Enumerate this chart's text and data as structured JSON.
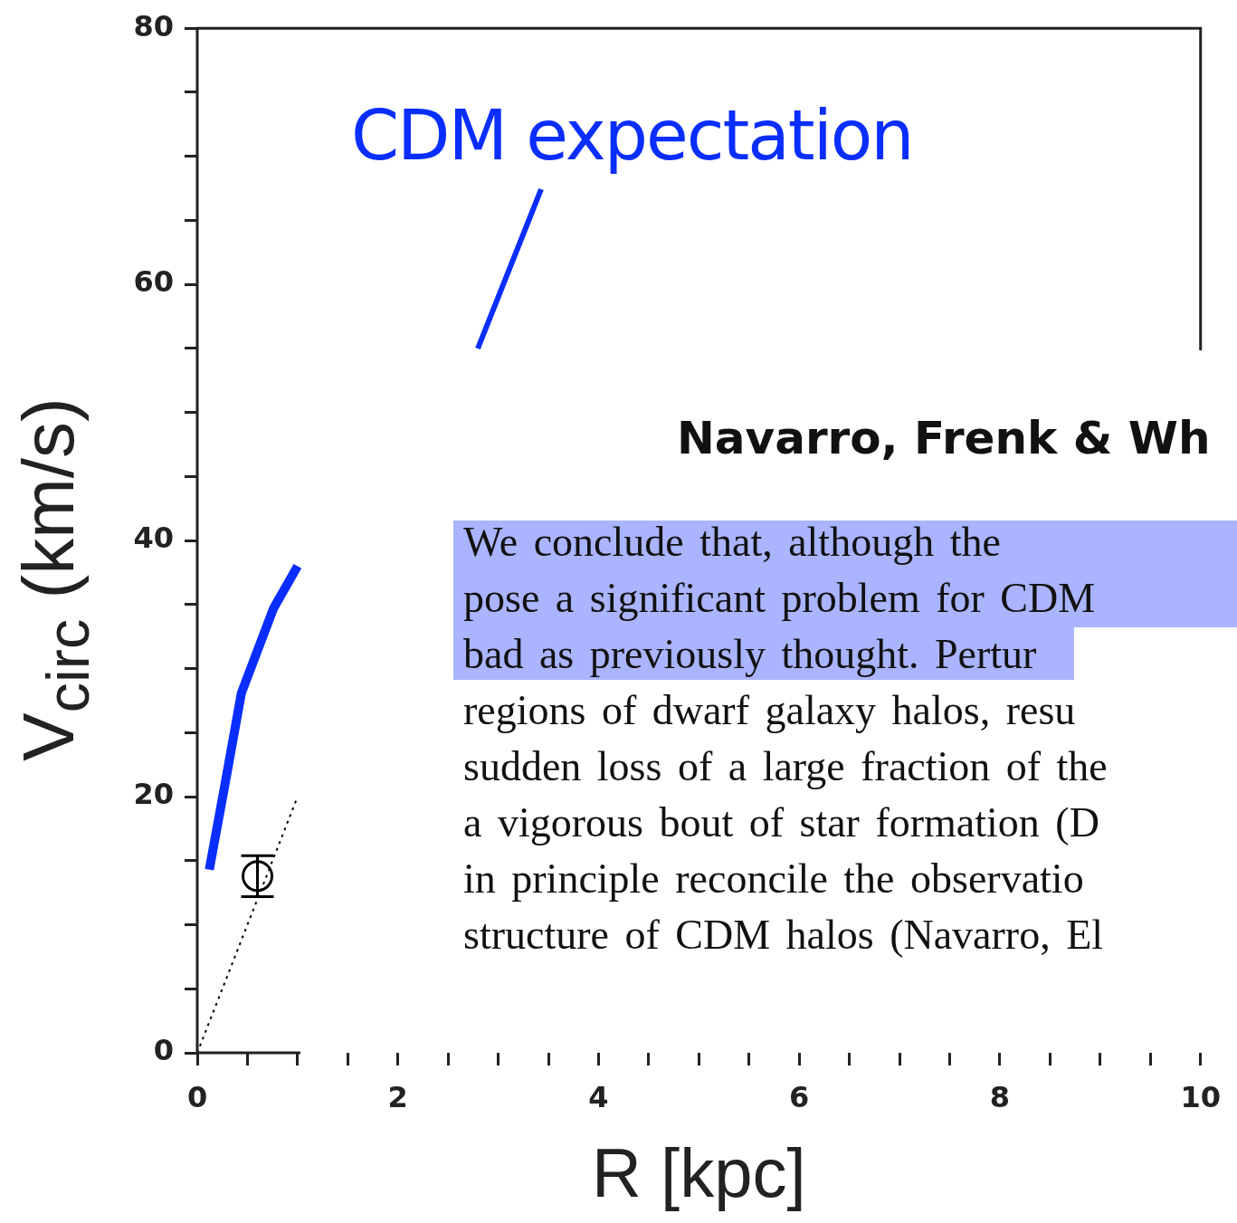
{
  "chart_data": {
    "type": "line",
    "xlabel": "R [kpc]",
    "ylabel": "V$_{circ}$ (km/s)",
    "xlim": [
      0,
      10
    ],
    "ylim": [
      0,
      80
    ],
    "xticks": [
      0,
      {
        "value": 0.5,
        "label": null
      },
      {
        "value": 1,
        "label": null
      },
      {
        "value": 1.5,
        "label": null
      },
      2,
      {
        "value": 2.5,
        "label": null
      },
      {
        "value": 3,
        "label": null
      },
      {
        "value": 3.5,
        "label": null
      },
      4,
      {
        "value": 4.5,
        "label": null
      },
      {
        "value": 5,
        "label": null
      },
      {
        "value": 5.5,
        "label": null
      },
      6,
      {
        "value": 6.5,
        "label": null
      },
      {
        "value": 7,
        "label": null
      },
      {
        "value": 7.5,
        "label": null
      },
      8,
      {
        "value": 8.5,
        "label": null
      },
      {
        "value": 9,
        "label": null
      },
      {
        "value": 9.5,
        "label": null
      },
      10
    ],
    "yticks": [
      0,
      {
        "value": 5,
        "label": null
      },
      {
        "value": 10,
        "label": null
      },
      {
        "value": 15,
        "label": null
      },
      20,
      {
        "value": 25,
        "label": null
      },
      {
        "value": 30,
        "label": null
      },
      {
        "value": 35,
        "label": null
      },
      40,
      {
        "value": 45,
        "label": null
      },
      {
        "value": 50,
        "label": null
      },
      {
        "value": 55,
        "label": null
      },
      60,
      {
        "value": 65,
        "label": null
      },
      {
        "value": 70,
        "label": null
      },
      {
        "value": 75,
        "label": null
      },
      80
    ],
    "series": [
      {
        "type": "line",
        "color": "#0a2eff",
        "x": [
          0.12,
          0.27,
          0.44,
          0.76,
          1.0
        ],
        "values": [
          14.3,
          20.7,
          28.1,
          34.7,
          38.0
        ],
        "marker": "none",
        "line_style": "solid"
      },
      {
        "type": "line",
        "color": "#000000",
        "x": [
          0,
          1.0
        ],
        "values": [
          0,
          20
        ],
        "marker": "none",
        "line_style": "dotted"
      },
      {
        "type": "scatter",
        "color": "#000000",
        "x": [
          0.6
        ],
        "values": [
          13.8
        ],
        "errors": [
          1.6
        ],
        "marker": "circle"
      }
    ],
    "annotations": [
      "CDM expectation",
      "Navarro, Frenk & Wh",
      "We conclude that, although the",
      "pose a significant problem for CDM",
      "bad as previously thought. Pertur",
      "regions of dwarf galaxy halos, resu",
      "sudden loss of a large fraction of the",
      "a vigorous bout of star formation (D",
      "in principle reconcile the observatio",
      "structure of CDM halos (Navarro, El"
    ]
  }
}
